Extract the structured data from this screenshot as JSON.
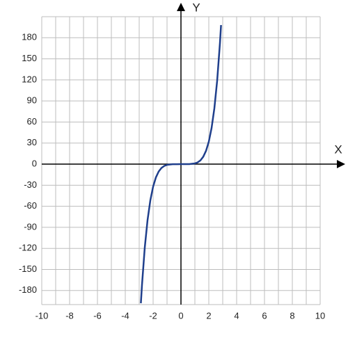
{
  "chart_data": {
    "type": "line",
    "xlabel": "X",
    "ylabel": "Y",
    "x": [
      -2.88,
      -2.8,
      -2.6,
      -2.4,
      -2.2,
      -2.0,
      -1.8,
      -1.6,
      -1.4,
      -1.2,
      -1.0,
      -0.6,
      0,
      0.6,
      1.0,
      1.2,
      1.4,
      1.6,
      1.8,
      2.0,
      2.2,
      2.4,
      2.6,
      2.8,
      2.88
    ],
    "values": [
      -198.1,
      -172.1,
      -118.8,
      -79.6,
      -51.5,
      -32,
      -18.9,
      -10.5,
      -5.4,
      -2.5,
      -1,
      -0.1,
      0,
      0.1,
      1,
      2.5,
      5.4,
      10.5,
      18.9,
      32,
      51.5,
      79.6,
      118.8,
      172.1,
      198.1
    ],
    "color": "#1f3f8c",
    "xlim": [
      -10,
      10
    ],
    "xticks": [
      -10,
      -8,
      -6,
      -4,
      -2,
      0,
      2,
      4,
      6,
      8,
      10
    ],
    "ylim": [
      -200,
      210
    ],
    "yticks": [
      -180,
      -150,
      -120,
      -90,
      -60,
      -30,
      0,
      30,
      60,
      90,
      120,
      150,
      180
    ],
    "grid": true
  }
}
